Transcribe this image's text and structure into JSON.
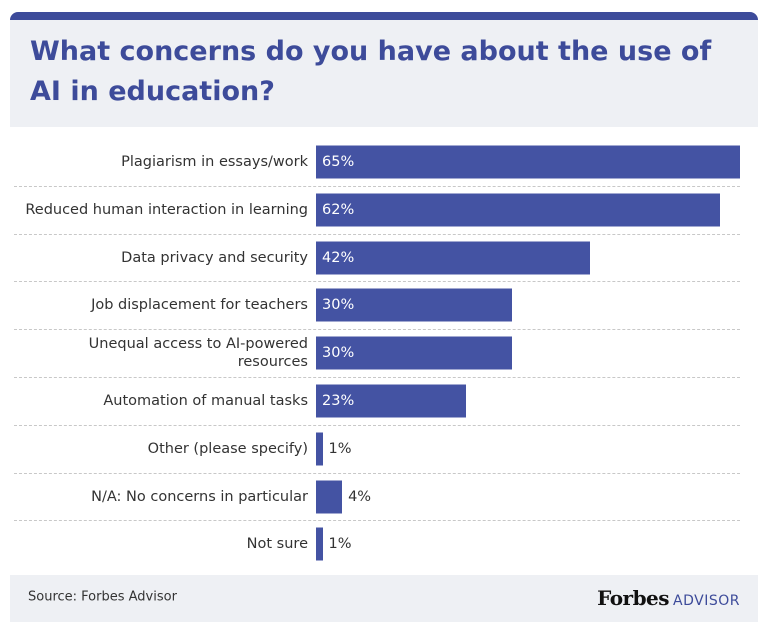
{
  "chart_data": {
    "type": "bar",
    "orientation": "horizontal",
    "title": "What concerns do you have about the use of AI in education?",
    "categories": [
      "Plagiarism in essays/work",
      "Reduced human interaction in learning",
      "Data privacy and security",
      "Job displacement for teachers",
      "Unequal access to AI-powered resources",
      "Automation of manual tasks",
      "Other (please specify)",
      "N/A: No concerns in particular",
      "Not sure"
    ],
    "values": [
      65,
      62,
      42,
      30,
      30,
      23,
      1,
      4,
      1
    ],
    "value_labels": [
      "65%",
      "62%",
      "42%",
      "30%",
      "30%",
      "23%",
      "1%",
      "4%",
      "1%"
    ],
    "color": "#4453a3",
    "source": "Source: Forbes Advisor",
    "logo": {
      "brand": "Forbes",
      "suffix": "ADVISOR"
    }
  }
}
